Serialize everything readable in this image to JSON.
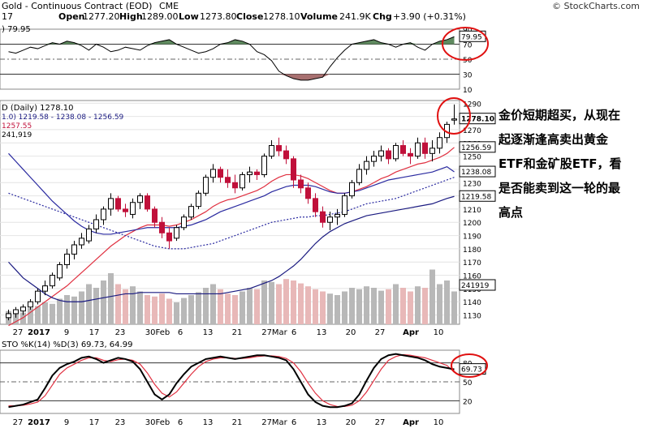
{
  "header": {
    "title_line": "Gold - Continuous Contract (EOD)",
    "exchange": "CME",
    "source": "© StockCharts.com",
    "open_label": "Open",
    "open": "1277.20",
    "high_label": "High",
    "high": "1289.00",
    "low_label": "Low",
    "low": "1273.80",
    "close_label": "Close",
    "close": "1278.10",
    "volume_label": "Volume",
    "volume": "241.9K",
    "chg_label": "Chg",
    "chg": "+3.90 (+0.31%)",
    "prefix": "17"
  },
  "annotation": {
    "lines": [
      "金价短期超买，从现在",
      "起逐渐逢高卖出黄金",
      "ETF和金矿股ETF，看",
      "是否能卖到这一轮的最",
      "高点"
    ]
  },
  "chart_data": [
    {
      "type": "line",
      "panel": "rsi",
      "label": ") 79.95",
      "ylim": [
        10,
        90
      ],
      "ticks": [
        90,
        70,
        50,
        30,
        10
      ],
      "ref_levels": [
        70,
        50,
        30
      ],
      "last_value": "79.95",
      "values": [
        60,
        58,
        62,
        66,
        64,
        68,
        72,
        70,
        74,
        72,
        68,
        62,
        70,
        66,
        60,
        62,
        66,
        64,
        62,
        68,
        72,
        74,
        76,
        70,
        66,
        62,
        58,
        60,
        64,
        70,
        72,
        76,
        74,
        70,
        60,
        56,
        48,
        34,
        28,
        24,
        22,
        22,
        24,
        26,
        40,
        52,
        62,
        70,
        72,
        74,
        76,
        72,
        70,
        66,
        70,
        72,
        66,
        62,
        70,
        74,
        76,
        80
      ]
    },
    {
      "type": "candlestick",
      "panel": "price",
      "label": "D (Daily) 1278.10",
      "legend": [
        "1.0) 1219.58 - 1238.08 - 1256.59",
        "1257.55",
        "241,919"
      ],
      "ylim": [
        1123,
        1292
      ],
      "ticks": [
        1290,
        1280,
        1270,
        1260,
        1250,
        1240,
        1230,
        1220,
        1210,
        1200,
        1190,
        1180,
        1170,
        1160,
        1150,
        1140,
        1130
      ],
      "price_tags": [
        "1278.10",
        "1256.59",
        "1238.08",
        "1219.58",
        "241919"
      ],
      "candles": [
        [
          1128,
          1134,
          1126,
          1131
        ],
        [
          1131,
          1136,
          1128,
          1134
        ],
        [
          1133,
          1138,
          1130,
          1136
        ],
        [
          1136,
          1142,
          1134,
          1140
        ],
        [
          1140,
          1150,
          1138,
          1148
        ],
        [
          1148,
          1156,
          1145,
          1152
        ],
        [
          1152,
          1162,
          1150,
          1160
        ],
        [
          1158,
          1170,
          1156,
          1168
        ],
        [
          1168,
          1180,
          1165,
          1176
        ],
        [
          1176,
          1186,
          1172,
          1183
        ],
        [
          1183,
          1192,
          1180,
          1188
        ],
        [
          1186,
          1198,
          1184,
          1195
        ],
        [
          1195,
          1206,
          1192,
          1202
        ],
        [
          1202,
          1212,
          1198,
          1210
        ],
        [
          1210,
          1222,
          1205,
          1218
        ],
        [
          1218,
          1220,
          1208,
          1210
        ],
        [
          1210,
          1214,
          1204,
          1208
        ],
        [
          1206,
          1218,
          1203,
          1215
        ],
        [
          1215,
          1222,
          1210,
          1220
        ],
        [
          1220,
          1222,
          1208,
          1210
        ],
        [
          1210,
          1212,
          1196,
          1200
        ],
        [
          1200,
          1204,
          1188,
          1192
        ],
        [
          1192,
          1196,
          1180,
          1186
        ],
        [
          1188,
          1198,
          1186,
          1196
        ],
        [
          1196,
          1206,
          1194,
          1204
        ],
        [
          1204,
          1214,
          1202,
          1212
        ],
        [
          1212,
          1224,
          1210,
          1222
        ],
        [
          1222,
          1236,
          1220,
          1234
        ],
        [
          1234,
          1244,
          1230,
          1240
        ],
        [
          1240,
          1242,
          1230,
          1234
        ],
        [
          1234,
          1240,
          1226,
          1230
        ],
        [
          1230,
          1236,
          1222,
          1226
        ],
        [
          1226,
          1238,
          1224,
          1236
        ],
        [
          1236,
          1242,
          1230,
          1238
        ],
        [
          1238,
          1240,
          1232,
          1236
        ],
        [
          1236,
          1252,
          1234,
          1250
        ],
        [
          1250,
          1262,
          1248,
          1258
        ],
        [
          1258,
          1264,
          1250,
          1254
        ],
        [
          1254,
          1258,
          1244,
          1248
        ],
        [
          1248,
          1250,
          1226,
          1232
        ],
        [
          1232,
          1236,
          1222,
          1226
        ],
        [
          1226,
          1230,
          1214,
          1218
        ],
        [
          1218,
          1222,
          1204,
          1208
        ],
        [
          1208,
          1212,
          1196,
          1200
        ],
        [
          1200,
          1208,
          1194,
          1204
        ],
        [
          1204,
          1210,
          1198,
          1206
        ],
        [
          1206,
          1222,
          1204,
          1220
        ],
        [
          1220,
          1232,
          1218,
          1230
        ],
        [
          1230,
          1244,
          1228,
          1240
        ],
        [
          1240,
          1250,
          1236,
          1246
        ],
        [
          1246,
          1254,
          1242,
          1250
        ],
        [
          1250,
          1258,
          1246,
          1254
        ],
        [
          1254,
          1256,
          1244,
          1248
        ],
        [
          1248,
          1260,
          1246,
          1258
        ],
        [
          1258,
          1262,
          1250,
          1252
        ],
        [
          1252,
          1256,
          1244,
          1250
        ],
        [
          1250,
          1264,
          1248,
          1260
        ],
        [
          1260,
          1264,
          1248,
          1252
        ],
        [
          1252,
          1262,
          1246,
          1256
        ],
        [
          1256,
          1268,
          1252,
          1264
        ],
        [
          1264,
          1276,
          1260,
          1274
        ],
        [
          1277.2,
          1289,
          1273.8,
          1278.1
        ]
      ],
      "series": [
        {
          "name": "EMA 20",
          "color": "#e03040",
          "values": [
            1122,
            1125,
            1128,
            1132,
            1136,
            1140,
            1144,
            1148,
            1152,
            1157,
            1162,
            1167,
            1172,
            1177,
            1182,
            1186,
            1190,
            1193,
            1196,
            1198,
            1198,
            1198,
            1197,
            1198,
            1200,
            1202,
            1205,
            1208,
            1212,
            1215,
            1217,
            1218,
            1220,
            1222,
            1224,
            1227,
            1231,
            1234,
            1236,
            1236,
            1235,
            1233,
            1230,
            1227,
            1224,
            1222,
            1222,
            1223,
            1225,
            1227,
            1230,
            1233,
            1235,
            1238,
            1240,
            1242,
            1244,
            1245,
            1247,
            1249,
            1252,
            1256.6
          ]
        },
        {
          "name": "EMA 50",
          "color": "#2a2aa0",
          "values": [
            1252,
            1246,
            1240,
            1234,
            1228,
            1222,
            1216,
            1211,
            1206,
            1201,
            1197,
            1194,
            1192,
            1191,
            1191,
            1192,
            1193,
            1194,
            1195,
            1196,
            1196,
            1196,
            1196,
            1196,
            1197,
            1198,
            1200,
            1202,
            1205,
            1208,
            1210,
            1212,
            1214,
            1216,
            1218,
            1220,
            1223,
            1225,
            1227,
            1228,
            1228,
            1228,
            1227,
            1225,
            1223,
            1222,
            1222,
            1223,
            1224,
            1226,
            1228,
            1230,
            1232,
            1233,
            1234,
            1235,
            1236,
            1237,
            1238,
            1240,
            1242,
            1238.1
          ]
        },
        {
          "name": "SMA 100",
          "color": "#2a2aa0",
          "dashed": true,
          "values": [
            1222,
            1220,
            1218,
            1216,
            1214,
            1212,
            1210,
            1208,
            1206,
            1204,
            1202,
            1200,
            1198,
            1196,
            1194,
            1192,
            1190,
            1188,
            1186,
            1184,
            1182,
            1181,
            1180,
            1180,
            1180,
            1181,
            1182,
            1183,
            1184,
            1186,
            1188,
            1190,
            1192,
            1194,
            1196,
            1198,
            1200,
            1201,
            1202,
            1203,
            1204,
            1204,
            1205,
            1205,
            1206,
            1207,
            1208,
            1210,
            1212,
            1214,
            1215,
            1216,
            1217,
            1218,
            1220,
            1222,
            1224,
            1226,
            1228,
            1230,
            1232,
            1234
          ]
        },
        {
          "name": "SMA 200",
          "color": "#1a1a80",
          "values": [
            1170,
            1164,
            1158,
            1154,
            1150,
            1146,
            1143,
            1141,
            1140,
            1140,
            1140,
            1141,
            1142,
            1143,
            1144,
            1145,
            1146,
            1146,
            1147,
            1147,
            1147,
            1147,
            1147,
            1146,
            1146,
            1146,
            1146,
            1146,
            1146,
            1146,
            1147,
            1148,
            1149,
            1150,
            1152,
            1154,
            1156,
            1159,
            1163,
            1167,
            1172,
            1178,
            1184,
            1189,
            1193,
            1196,
            1199,
            1201,
            1203,
            1205,
            1206,
            1207,
            1208,
            1209,
            1210,
            1211,
            1212,
            1213,
            1214,
            1216,
            1218,
            1219.6
          ]
        }
      ],
      "volume": [
        0.18,
        0.2,
        0.16,
        0.22,
        0.25,
        0.3,
        0.28,
        0.35,
        0.4,
        0.38,
        0.45,
        0.55,
        0.5,
        0.6,
        0.7,
        0.55,
        0.48,
        0.52,
        0.45,
        0.4,
        0.38,
        0.42,
        0.35,
        0.3,
        0.36,
        0.4,
        0.44,
        0.5,
        0.55,
        0.48,
        0.42,
        0.4,
        0.45,
        0.5,
        0.48,
        0.6,
        0.58,
        0.55,
        0.62,
        0.6,
        0.56,
        0.52,
        0.48,
        0.45,
        0.42,
        0.4,
        0.45,
        0.5,
        0.48,
        0.52,
        0.5,
        0.46,
        0.48,
        0.55,
        0.5,
        0.45,
        0.52,
        0.5,
        0.75,
        0.55,
        0.6,
        0.45
      ]
    },
    {
      "type": "line",
      "panel": "stochastic",
      "label": "STO %K(14) %D(3) 69.73, 64.99",
      "ylim": [
        0,
        100
      ],
      "ticks": [
        80,
        50,
        20
      ],
      "ref_levels": [
        80,
        50,
        20
      ],
      "last_value": "69.73",
      "series": [
        {
          "name": "%K(14)",
          "color": "#000000",
          "values": [
            10,
            12,
            14,
            18,
            22,
            40,
            60,
            72,
            78,
            82,
            88,
            90,
            86,
            80,
            84,
            88,
            86,
            82,
            70,
            50,
            30,
            22,
            30,
            48,
            62,
            74,
            80,
            86,
            88,
            90,
            88,
            86,
            88,
            90,
            92,
            92,
            90,
            88,
            84,
            70,
            50,
            30,
            18,
            12,
            10,
            10,
            12,
            16,
            30,
            52,
            72,
            86,
            92,
            94,
            92,
            90,
            88,
            84,
            78,
            74,
            72,
            69.73
          ]
        },
        {
          "name": "%D(3)",
          "color": "#e03040",
          "values": [
            12,
            12,
            13,
            15,
            18,
            28,
            45,
            62,
            72,
            78,
            84,
            88,
            88,
            84,
            82,
            85,
            86,
            84,
            78,
            64,
            46,
            32,
            26,
            34,
            48,
            62,
            74,
            82,
            86,
            88,
            88,
            87,
            87,
            88,
            90,
            91,
            91,
            90,
            87,
            80,
            66,
            48,
            32,
            20,
            14,
            11,
            11,
            13,
            20,
            34,
            52,
            70,
            84,
            90,
            93,
            92,
            90,
            88,
            84,
            80,
            76,
            64.99
          ]
        }
      ]
    }
  ],
  "x_axis": {
    "labels": [
      "27",
      "2017",
      "9",
      "17",
      "23",
      "30Feb",
      "6",
      "13",
      "21",
      "27Mar",
      "6",
      "13",
      "20",
      "27",
      "Apr",
      "10"
    ],
    "bold": [
      "2017",
      "Apr"
    ]
  }
}
